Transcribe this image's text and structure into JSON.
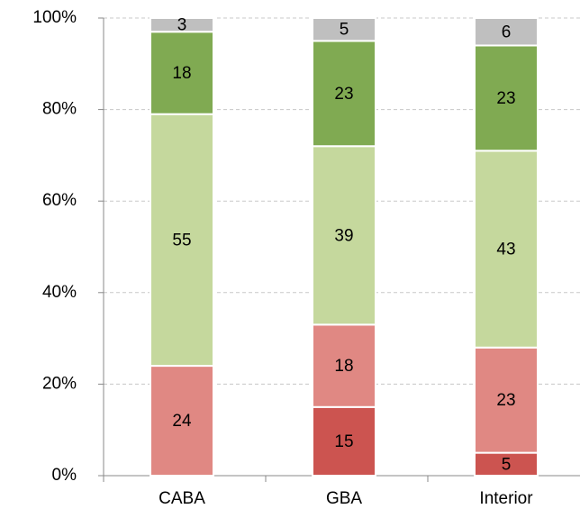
{
  "chart_data": {
    "type": "stacked_bar",
    "categories": [
      "CABA",
      "GBA",
      "Interior"
    ],
    "series": [
      {
        "color": "#cc5450",
        "values": [
          null,
          15,
          5
        ]
      },
      {
        "color": "#e08883",
        "values": [
          24,
          18,
          23
        ]
      },
      {
        "color": "#c5d89d",
        "values": [
          55,
          39,
          43
        ]
      },
      {
        "color": "#80aa52",
        "values": [
          18,
          23,
          23
        ]
      },
      {
        "color": "#bfbfbf",
        "values": [
          3,
          5,
          6
        ]
      }
    ],
    "ylim": [
      0,
      100
    ],
    "yticks": [
      {
        "value": 0,
        "label": "0%"
      },
      {
        "value": 20,
        "label": "20%"
      },
      {
        "value": 40,
        "label": "40%"
      },
      {
        "value": 60,
        "label": "60%"
      },
      {
        "value": 80,
        "label": "80%"
      },
      {
        "value": 100,
        "label": "100%"
      }
    ],
    "grid": true
  }
}
